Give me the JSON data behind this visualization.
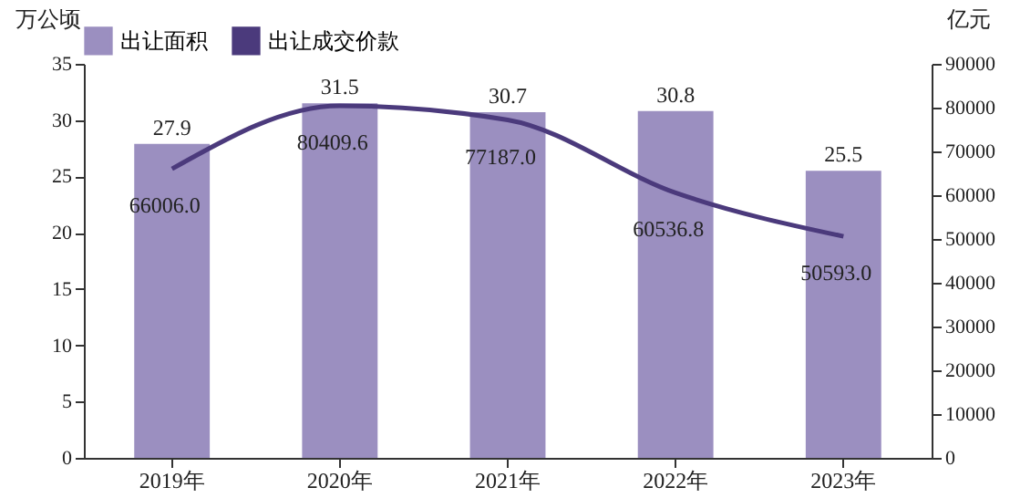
{
  "chart_data": {
    "type": "bar",
    "categories": [
      "2019年",
      "2020年",
      "2021年",
      "2022年",
      "2023年"
    ],
    "ylabel": "万公顷",
    "y2label": "亿元",
    "ylim": [
      0,
      35
    ],
    "yticks": [
      0,
      5,
      10,
      15,
      20,
      25,
      30,
      35
    ],
    "y2lim": [
      0,
      90000
    ],
    "y2ticks": [
      0,
      10000,
      20000,
      30000,
      40000,
      50000,
      60000,
      70000,
      80000,
      90000
    ],
    "series": [
      {
        "name": "出让面积",
        "color": "#9b8fc0",
        "values": [
          27.9,
          31.5,
          30.7,
          30.8,
          25.5
        ],
        "value_labels": [
          "27.9",
          "31.5",
          "30.7",
          "30.8",
          "25.5"
        ]
      },
      {
        "name": "出让成交价款",
        "type": "line",
        "axis": "y2",
        "color": "#4b3a7c",
        "values": [
          66006.0,
          80409.6,
          77187.0,
          60536.8,
          50593.0
        ],
        "value_labels": [
          "66006.0",
          "80409.6",
          "77187.0",
          "60536.8",
          "50593.0"
        ]
      }
    ],
    "legend": "top",
    "grid": false,
    "marker": "none",
    "line_style": "solid"
  }
}
